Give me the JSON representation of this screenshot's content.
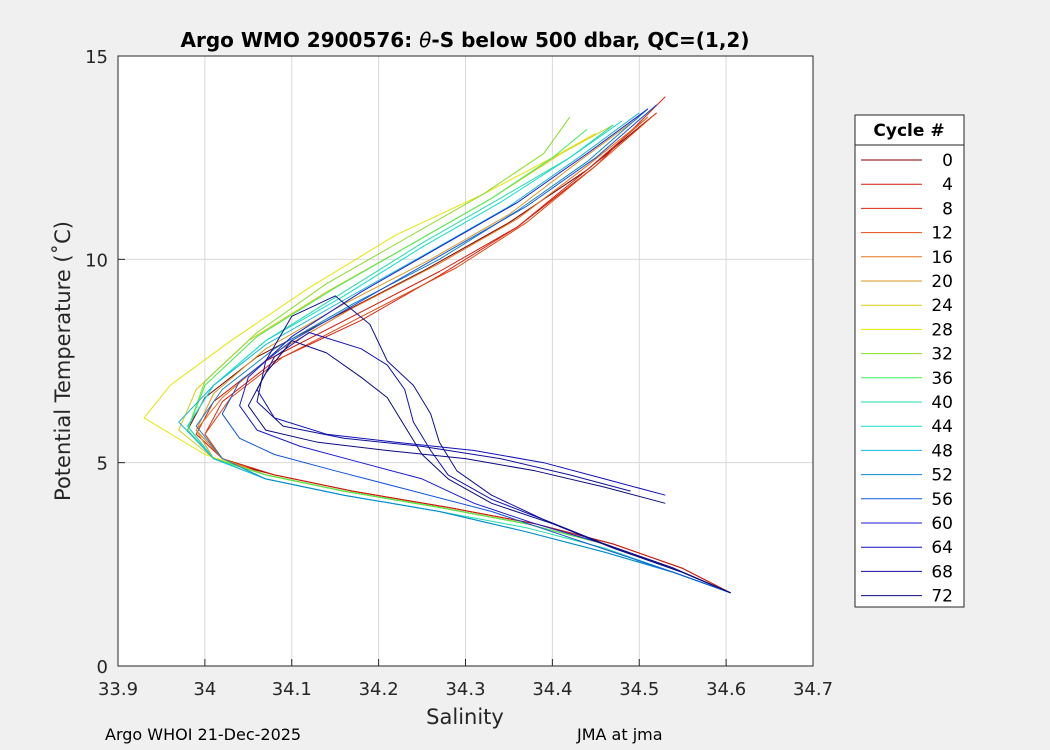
{
  "chart_data": {
    "type": "line",
    "title_prefix": "Argo WMO 2900576: ",
    "title_symbol": "θ",
    "title_suffix": "-S below 500 dbar,  QC=(1,2)",
    "xlabel": "Salinity",
    "ylabel": "Potential Temperature (˚C)",
    "xlim": [
      33.9,
      34.7
    ],
    "ylim": [
      0,
      15
    ],
    "xticks": [
      "33.9",
      "34",
      "34.1",
      "34.2",
      "34.3",
      "34.4",
      "34.5",
      "34.6",
      "34.7"
    ],
    "yticks": [
      "0",
      "5",
      "10",
      "15"
    ],
    "grid": true,
    "legend": {
      "title": "Cycle #",
      "placement": "right",
      "entries": [
        {
          "label": "0",
          "color": "#800000"
        },
        {
          "label": "4",
          "color": "#d41a0a"
        },
        {
          "label": "8",
          "color": "#dd2211"
        },
        {
          "label": "12",
          "color": "#e34a12"
        },
        {
          "label": "16",
          "color": "#e8731a"
        },
        {
          "label": "20",
          "color": "#dd9922"
        },
        {
          "label": "24",
          "color": "#d8cc11"
        },
        {
          "label": "28",
          "color": "#e6e600"
        },
        {
          "label": "32",
          "color": "#88dd22"
        },
        {
          "label": "36",
          "color": "#44ee55"
        },
        {
          "label": "40",
          "color": "#22ddaa"
        },
        {
          "label": "44",
          "color": "#11ddcc"
        },
        {
          "label": "48",
          "color": "#11bbdd"
        },
        {
          "label": "52",
          "color": "#1188cc"
        },
        {
          "label": "56",
          "color": "#1155dd"
        },
        {
          "label": "60",
          "color": "#1a1ad8"
        },
        {
          "label": "64",
          "color": "#1010b8"
        },
        {
          "label": "68",
          "color": "#101099"
        },
        {
          "label": "72",
          "color": "#0a0a80"
        }
      ]
    },
    "series": [
      {
        "name": "0",
        "color": "#800000",
        "x": [
          34.605,
          34.55,
          34.47,
          34.38,
          34.28,
          34.17,
          34.08,
          34.01,
          33.98,
          34.0,
          34.06,
          34.15,
          34.25,
          34.35,
          34.44,
          34.52
        ],
        "y": [
          1.8,
          2.4,
          3.0,
          3.5,
          3.9,
          4.3,
          4.7,
          5.1,
          5.8,
          6.6,
          7.6,
          8.6,
          9.7,
          10.9,
          12.2,
          13.6
        ]
      },
      {
        "name": "4",
        "color": "#d41a0a",
        "x": [
          34.605,
          34.55,
          34.47,
          34.38,
          34.28,
          34.17,
          34.08,
          34.02,
          33.99,
          34.01,
          34.07,
          34.17,
          34.27,
          34.36,
          34.45,
          34.53
        ],
        "y": [
          1.8,
          2.4,
          3.0,
          3.5,
          3.9,
          4.3,
          4.7,
          5.1,
          5.7,
          6.5,
          7.5,
          8.6,
          9.7,
          10.8,
          12.3,
          14.0
        ]
      },
      {
        "name": "8",
        "color": "#dd2211",
        "x": [
          34.605,
          34.54,
          34.46,
          34.37,
          34.27,
          34.16,
          34.07,
          34.02,
          34.0,
          34.02,
          34.08,
          34.18,
          34.27,
          34.36,
          34.44,
          34.51
        ],
        "y": [
          1.8,
          2.4,
          3.0,
          3.5,
          3.9,
          4.3,
          4.7,
          5.1,
          5.7,
          6.5,
          7.5,
          8.5,
          9.6,
          10.8,
          12.2,
          13.5
        ]
      },
      {
        "name": "12",
        "color": "#e34a12",
        "x": [
          34.605,
          34.54,
          34.46,
          34.37,
          34.27,
          34.16,
          34.07,
          34.02,
          34.0,
          34.03,
          34.09,
          34.19,
          34.29,
          34.37,
          34.45,
          34.52
        ],
        "y": [
          1.8,
          2.4,
          3.0,
          3.5,
          3.9,
          4.3,
          4.7,
          5.1,
          5.7,
          6.6,
          7.6,
          8.7,
          9.8,
          10.9,
          12.3,
          13.6
        ]
      },
      {
        "name": "16",
        "color": "#e8731a",
        "x": [
          34.605,
          34.54,
          34.46,
          34.37,
          34.27,
          34.16,
          34.07,
          34.02,
          33.99,
          34.02,
          34.08,
          34.17,
          34.27,
          34.36,
          34.44,
          34.51
        ],
        "y": [
          1.8,
          2.4,
          3.0,
          3.5,
          3.9,
          4.3,
          4.7,
          5.1,
          5.8,
          6.6,
          7.7,
          8.8,
          9.9,
          11.0,
          12.3,
          13.5
        ]
      },
      {
        "name": "20",
        "color": "#dd9922",
        "x": [
          34.605,
          34.54,
          34.46,
          34.37,
          34.27,
          34.16,
          34.07,
          34.01,
          33.99,
          34.01,
          34.07,
          34.16,
          34.26,
          34.35,
          34.43,
          34.5
        ],
        "y": [
          1.8,
          2.4,
          3.0,
          3.5,
          3.9,
          4.3,
          4.7,
          5.1,
          5.8,
          6.7,
          7.8,
          8.9,
          10.0,
          11.1,
          12.4,
          13.5
        ]
      },
      {
        "name": "24",
        "color": "#d8cc11",
        "x": [
          34.605,
          34.54,
          34.46,
          34.37,
          34.27,
          34.16,
          34.07,
          34.01,
          33.97,
          33.99,
          34.05,
          34.14,
          34.24,
          34.33,
          34.41,
          34.47
        ],
        "y": [
          1.8,
          2.4,
          3.0,
          3.5,
          3.9,
          4.3,
          4.7,
          5.1,
          5.8,
          6.8,
          8.0,
          9.2,
          10.4,
          11.5,
          12.6,
          13.3
        ]
      },
      {
        "name": "28",
        "color": "#e6e600",
        "x": [
          34.605,
          34.54,
          34.46,
          34.37,
          34.27,
          34.16,
          34.07,
          34.0,
          33.93,
          33.96,
          34.03,
          34.12,
          34.22,
          34.32,
          34.4,
          34.45
        ],
        "y": [
          1.8,
          2.4,
          3.0,
          3.5,
          3.9,
          4.3,
          4.7,
          5.2,
          6.1,
          6.9,
          8.0,
          9.3,
          10.6,
          11.6,
          12.5,
          13.1
        ]
      },
      {
        "name": "32",
        "color": "#88dd22",
        "x": [
          34.605,
          34.54,
          34.46,
          34.37,
          34.27,
          34.16,
          34.07,
          34.01,
          33.98,
          34.0,
          34.06,
          34.14,
          34.23,
          34.32,
          34.39,
          34.42
        ],
        "y": [
          1.8,
          2.4,
          3.0,
          3.5,
          3.9,
          4.3,
          4.7,
          5.1,
          5.8,
          7.0,
          8.2,
          9.4,
          10.5,
          11.6,
          12.6,
          13.5
        ]
      },
      {
        "name": "36",
        "color": "#44ee55",
        "x": [
          34.605,
          34.54,
          34.46,
          34.37,
          34.27,
          34.16,
          34.07,
          34.01,
          33.98,
          34.0,
          34.06,
          34.15,
          34.24,
          34.33,
          34.4,
          34.44
        ],
        "y": [
          1.8,
          2.4,
          3.0,
          3.5,
          3.9,
          4.3,
          4.7,
          5.1,
          5.8,
          6.9,
          8.1,
          9.3,
          10.4,
          11.5,
          12.5,
          13.2
        ]
      },
      {
        "name": "40",
        "color": "#22ddaa",
        "x": [
          34.605,
          34.54,
          34.46,
          34.37,
          34.27,
          34.16,
          34.07,
          34.01,
          33.98,
          34.01,
          34.07,
          34.16,
          34.25,
          34.34,
          34.42,
          34.47
        ],
        "y": [
          1.8,
          2.3,
          2.9,
          3.4,
          3.8,
          4.2,
          4.6,
          5.1,
          5.9,
          6.9,
          8.0,
          9.2,
          10.4,
          11.5,
          12.5,
          13.3
        ]
      },
      {
        "name": "44",
        "color": "#11ddcc",
        "x": [
          34.605,
          34.54,
          34.46,
          34.37,
          34.27,
          34.16,
          34.07,
          34.01,
          33.98,
          34.01,
          34.07,
          34.16,
          34.25,
          34.34,
          34.42,
          34.48
        ],
        "y": [
          1.8,
          2.3,
          2.8,
          3.3,
          3.8,
          4.2,
          4.6,
          5.1,
          5.9,
          6.9,
          8.0,
          9.1,
          10.3,
          11.4,
          12.5,
          13.4
        ]
      },
      {
        "name": "48",
        "color": "#11bbdd",
        "x": [
          34.605,
          34.54,
          34.46,
          34.37,
          34.27,
          34.16,
          34.07,
          34.01,
          33.97,
          34.01,
          34.07,
          34.16,
          34.26,
          34.35,
          34.43,
          34.5
        ],
        "y": [
          1.8,
          2.3,
          2.8,
          3.3,
          3.8,
          4.2,
          4.6,
          5.1,
          6.0,
          6.9,
          7.9,
          9.0,
          10.2,
          11.3,
          12.5,
          13.6
        ]
      },
      {
        "name": "52",
        "color": "#1188cc",
        "x": [
          34.605,
          34.54,
          34.46,
          34.37,
          34.27,
          34.16,
          34.07,
          34.02,
          33.99,
          34.02,
          34.08,
          34.17,
          34.27,
          34.36,
          34.44,
          34.51
        ],
        "y": [
          1.8,
          2.3,
          2.8,
          3.3,
          3.8,
          4.2,
          4.6,
          5.1,
          5.9,
          6.8,
          7.8,
          8.9,
          10.0,
          11.2,
          12.4,
          13.7
        ]
      },
      {
        "name": "56",
        "color": "#1155dd",
        "x": [
          34.605,
          34.54,
          34.47,
          34.4,
          34.33,
          34.24,
          34.15,
          34.08,
          34.04,
          34.02,
          34.04,
          34.1,
          34.19,
          34.28,
          34.37,
          34.45,
          34.52
        ],
        "y": [
          1.8,
          2.3,
          2.8,
          3.3,
          3.8,
          4.3,
          4.8,
          5.2,
          5.6,
          6.2,
          7.0,
          8.0,
          9.1,
          10.2,
          11.3,
          12.5,
          13.8
        ]
      },
      {
        "name": "60",
        "color": "#1a1ad8",
        "x": [
          34.605,
          34.54,
          34.46,
          34.38,
          34.31,
          34.25,
          34.18,
          34.11,
          34.06,
          34.04,
          34.05,
          34.1,
          34.18,
          34.27,
          34.36,
          34.44,
          34.51
        ],
        "y": [
          1.8,
          2.4,
          3.0,
          3.5,
          4.0,
          4.6,
          5.0,
          5.4,
          5.8,
          6.4,
          7.1,
          8.1,
          9.2,
          10.3,
          11.4,
          12.6,
          13.7
        ]
      },
      {
        "name": "64",
        "color": "#1010b8",
        "x": [
          34.605,
          34.54,
          34.46,
          34.39,
          34.33,
          34.28,
          34.26,
          34.24,
          34.23,
          34.21,
          34.18,
          34.12,
          34.08,
          34.06,
          34.08,
          34.14,
          34.22,
          34.31,
          34.39,
          34.46,
          34.53
        ],
        "y": [
          1.8,
          2.4,
          3.0,
          3.6,
          4.1,
          4.7,
          5.3,
          6.0,
          6.8,
          7.4,
          7.8,
          8.2,
          7.6,
          6.8,
          6.1,
          5.7,
          5.5,
          5.3,
          5.0,
          4.6,
          4.2
        ]
      },
      {
        "name": "68",
        "color": "#101099",
        "x": [
          34.605,
          34.54,
          34.46,
          34.39,
          34.33,
          34.29,
          34.27,
          34.26,
          34.24,
          34.21,
          34.19,
          34.15,
          34.1,
          34.07,
          34.06,
          34.09,
          34.16,
          34.25,
          34.34,
          34.42,
          34.49
        ],
        "y": [
          1.8,
          2.4,
          3.0,
          3.6,
          4.2,
          4.8,
          5.5,
          6.2,
          6.9,
          7.5,
          8.4,
          9.1,
          8.6,
          7.5,
          6.5,
          5.9,
          5.6,
          5.4,
          5.1,
          4.7,
          4.3
        ]
      },
      {
        "name": "72",
        "color": "#0a0a80",
        "x": [
          34.605,
          34.55,
          34.47,
          34.4,
          34.33,
          34.28,
          34.25,
          34.23,
          34.21,
          34.18,
          34.14,
          34.1,
          34.07,
          34.05,
          34.07,
          34.13,
          34.21,
          34.3,
          34.38,
          34.46,
          34.53
        ],
        "y": [
          1.8,
          2.3,
          2.9,
          3.5,
          4.0,
          4.6,
          5.2,
          5.9,
          6.6,
          7.1,
          7.7,
          8.0,
          7.2,
          6.4,
          5.8,
          5.5,
          5.3,
          5.1,
          4.8,
          4.4,
          4.0
        ]
      }
    ]
  },
  "footer": {
    "left": "Argo WHOI 21-Dec-2025",
    "right": "JMA at jma"
  }
}
